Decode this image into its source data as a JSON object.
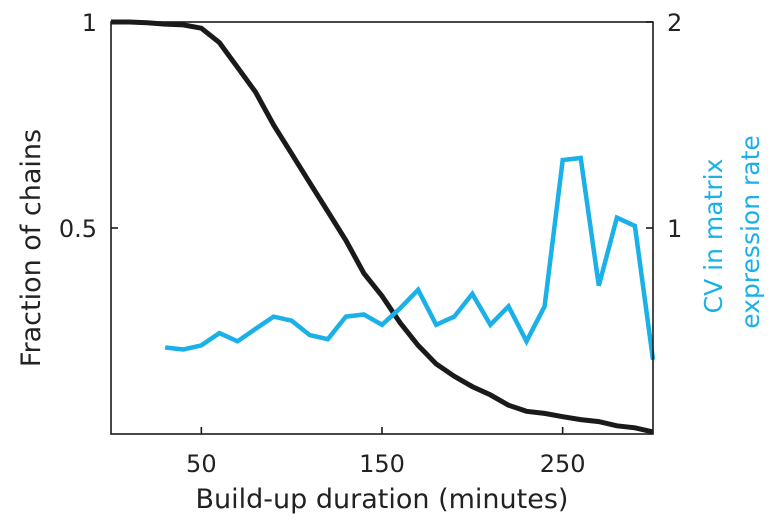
{
  "chart_data": {
    "type": "line",
    "xlabel": "Build-up duration (minutes)",
    "ylabel_left": "Fraction of chains",
    "ylabel_right": [
      "CV in matrix",
      "expression rate"
    ],
    "xlim": [
      0,
      300
    ],
    "ylim_left": [
      0,
      1
    ],
    "ylim_right": [
      0,
      2
    ],
    "x_ticks": [
      50,
      150,
      250
    ],
    "y_left_ticks": [
      {
        "value": 0.5,
        "label": "0.5"
      },
      {
        "value": 1,
        "label": "1"
      }
    ],
    "y_right_ticks": [
      {
        "value": 1,
        "label": "1"
      },
      {
        "value": 2,
        "label": "2"
      }
    ],
    "grid": false,
    "series": [
      {
        "axis": "left",
        "color": "#1a1a1a",
        "x": [
          0,
          10,
          20,
          30,
          40,
          50,
          60,
          70,
          80,
          90,
          100,
          110,
          120,
          130,
          140,
          150,
          160,
          170,
          180,
          190,
          200,
          210,
          220,
          230,
          240,
          250,
          260,
          270,
          280,
          290,
          300
        ],
        "y": [
          1.0,
          1.0,
          0.998,
          0.995,
          0.993,
          0.985,
          0.95,
          0.89,
          0.83,
          0.75,
          0.68,
          0.61,
          0.54,
          0.47,
          0.39,
          0.335,
          0.27,
          0.215,
          0.17,
          0.14,
          0.115,
          0.095,
          0.07,
          0.055,
          0.05,
          0.042,
          0.035,
          0.03,
          0.02,
          0.015,
          0.005
        ]
      },
      {
        "axis": "right",
        "color": "#1ab0e8",
        "x": [
          30,
          40,
          50,
          60,
          70,
          80,
          90,
          100,
          110,
          120,
          130,
          140,
          150,
          160,
          170,
          180,
          190,
          200,
          210,
          220,
          230,
          240,
          250,
          260,
          270,
          280,
          290,
          300
        ],
        "y": [
          0.42,
          0.41,
          0.43,
          0.49,
          0.45,
          0.51,
          0.57,
          0.55,
          0.48,
          0.46,
          0.57,
          0.58,
          0.53,
          0.61,
          0.7,
          0.53,
          0.57,
          0.68,
          0.53,
          0.62,
          0.45,
          0.62,
          1.33,
          1.34,
          0.72,
          1.05,
          1.01,
          0.36
        ]
      }
    ]
  }
}
